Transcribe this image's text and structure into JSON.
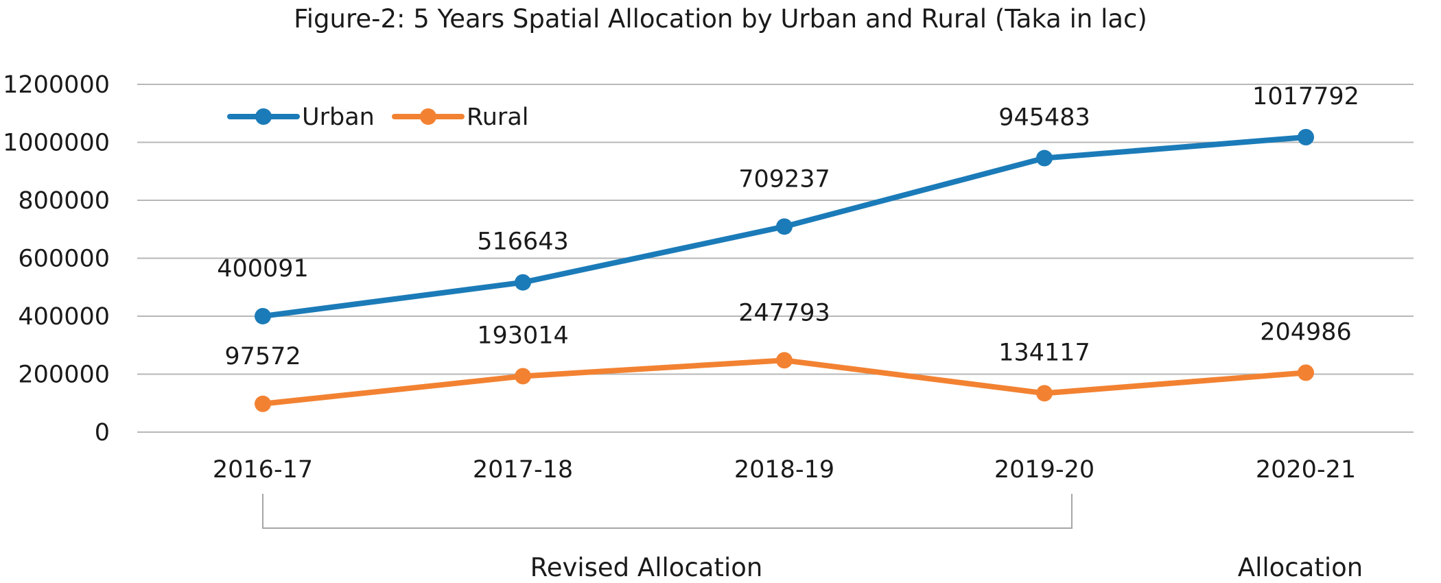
{
  "chart_data": {
    "type": "line",
    "title": "Figure-2: 5 Years Spatial Allocation by Urban and Rural (Taka in lac)",
    "categories": [
      "2016-17",
      "2017-18",
      "2018-19",
      "2019-20",
      "2020-21"
    ],
    "series": [
      {
        "name": "Urban",
        "color": "#1b7bb8",
        "values": [
          400091,
          516643,
          709237,
          945483,
          1017792
        ],
        "labels": [
          "400091",
          "516643",
          "709237",
          "945483",
          "1017792"
        ]
      },
      {
        "name": "Rural",
        "color": "#f28232",
        "values": [
          97572,
          193014,
          247793,
          134117,
          204986
        ],
        "labels": [
          "97572",
          "193014",
          "247793",
          "134117",
          "204986"
        ]
      }
    ],
    "y_ticks": [
      0,
      200000,
      400000,
      600000,
      800000,
      1000000,
      1200000
    ],
    "y_tick_labels": [
      "0",
      "200000",
      "400000",
      "600000",
      "800000",
      "1000000",
      "1200000"
    ],
    "ylim": [
      0,
      1200000
    ],
    "xlabel": "",
    "ylabel": "",
    "grid": true,
    "legend_position": "top-left",
    "groups": [
      {
        "label": "Revised Allocation",
        "from": "2016-17",
        "to": "2019-20"
      },
      {
        "label": "Allocation",
        "from": "2020-21",
        "to": "2020-21"
      }
    ]
  }
}
